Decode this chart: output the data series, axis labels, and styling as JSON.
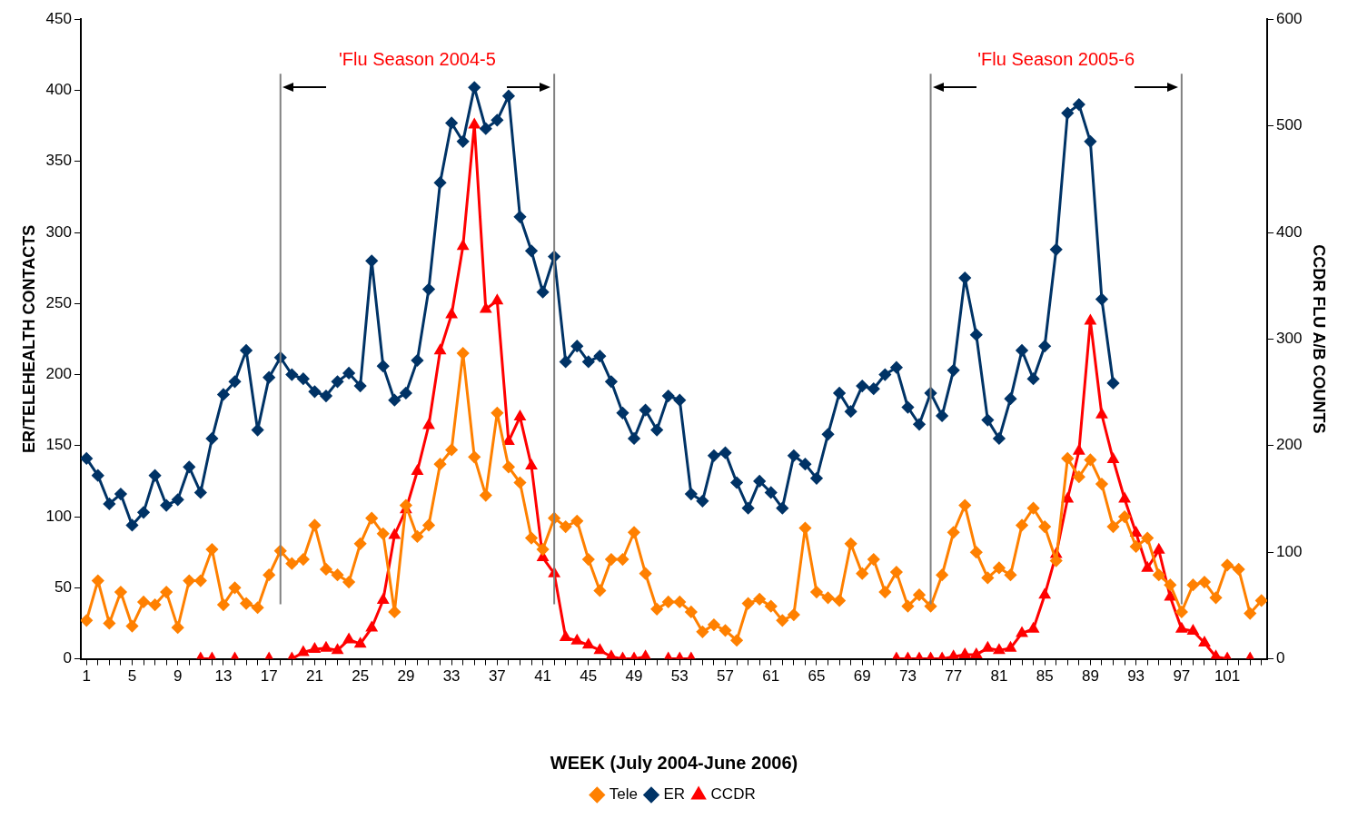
{
  "chart_data": {
    "type": "line",
    "xlabel": "WEEK (July 2004-June 2006)",
    "ylabel": "ER/TELEHEALTH CONTACTS",
    "y2label": "CCDR FLU A/B COUNTS",
    "x": [
      1,
      2,
      3,
      4,
      5,
      6,
      7,
      8,
      9,
      10,
      11,
      12,
      13,
      14,
      15,
      16,
      17,
      18,
      19,
      20,
      21,
      22,
      23,
      24,
      25,
      26,
      27,
      28,
      29,
      30,
      31,
      32,
      33,
      34,
      35,
      36,
      37,
      38,
      39,
      40,
      41,
      42,
      43,
      44,
      45,
      46,
      47,
      48,
      49,
      50,
      51,
      52,
      53,
      54,
      55,
      56,
      57,
      58,
      59,
      60,
      61,
      62,
      63,
      64,
      65,
      66,
      67,
      68,
      69,
      70,
      71,
      72,
      73,
      74,
      75,
      76,
      77,
      78,
      79,
      80,
      81,
      82,
      83,
      84,
      85,
      86,
      87,
      88,
      89,
      90,
      91,
      92,
      93,
      94,
      95,
      96,
      97,
      98,
      99,
      100,
      101,
      102,
      103,
      104
    ],
    "xlim": [
      0.5,
      104.5
    ],
    "xticks": [
      1,
      {
        "value": 2,
        "label": null
      },
      {
        "value": 3,
        "label": null
      },
      {
        "value": 4,
        "label": null
      },
      5,
      {
        "value": 6,
        "label": null
      },
      {
        "value": 7,
        "label": null
      },
      {
        "value": 8,
        "label": null
      },
      9,
      {
        "value": 10,
        "label": null
      },
      {
        "value": 11,
        "label": null
      },
      {
        "value": 12,
        "label": null
      },
      13,
      {
        "value": 14,
        "label": null
      },
      {
        "value": 15,
        "label": null
      },
      {
        "value": 16,
        "label": null
      },
      17,
      {
        "value": 18,
        "label": null
      },
      {
        "value": 19,
        "label": null
      },
      {
        "value": 20,
        "label": null
      },
      21,
      {
        "value": 22,
        "label": null
      },
      {
        "value": 23,
        "label": null
      },
      {
        "value": 24,
        "label": null
      },
      25,
      {
        "value": 26,
        "label": null
      },
      {
        "value": 27,
        "label": null
      },
      {
        "value": 28,
        "label": null
      },
      29,
      {
        "value": 30,
        "label": null
      },
      {
        "value": 31,
        "label": null
      },
      {
        "value": 32,
        "label": null
      },
      33,
      {
        "value": 34,
        "label": null
      },
      {
        "value": 35,
        "label": null
      },
      {
        "value": 36,
        "label": null
      },
      37,
      {
        "value": 38,
        "label": null
      },
      {
        "value": 39,
        "label": null
      },
      {
        "value": 40,
        "label": null
      },
      41,
      {
        "value": 42,
        "label": null
      },
      {
        "value": 43,
        "label": null
      },
      {
        "value": 44,
        "label": null
      },
      45,
      {
        "value": 46,
        "label": null
      },
      {
        "value": 47,
        "label": null
      },
      {
        "value": 48,
        "label": null
      },
      49,
      {
        "value": 50,
        "label": null
      },
      {
        "value": 51,
        "label": null
      },
      {
        "value": 52,
        "label": null
      },
      53,
      {
        "value": 54,
        "label": null
      },
      {
        "value": 55,
        "label": null
      },
      {
        "value": 56,
        "label": null
      },
      57,
      {
        "value": 58,
        "label": null
      },
      {
        "value": 59,
        "label": null
      },
      {
        "value": 60,
        "label": null
      },
      61,
      {
        "value": 62,
        "label": null
      },
      {
        "value": 63,
        "label": null
      },
      {
        "value": 64,
        "label": null
      },
      65,
      {
        "value": 66,
        "label": null
      },
      {
        "value": 67,
        "label": null
      },
      {
        "value": 68,
        "label": null
      },
      69,
      {
        "value": 70,
        "label": null
      },
      {
        "value": 71,
        "label": null
      },
      {
        "value": 72,
        "label": null
      },
      73,
      {
        "value": 74,
        "label": null
      },
      {
        "value": 75,
        "label": null
      },
      {
        "value": 76,
        "label": null
      },
      77,
      {
        "value": 78,
        "label": null
      },
      {
        "value": 79,
        "label": null
      },
      {
        "value": 80,
        "label": null
      },
      81,
      {
        "value": 82,
        "label": null
      },
      {
        "value": 83,
        "label": null
      },
      {
        "value": 84,
        "label": null
      },
      85,
      {
        "value": 86,
        "label": null
      },
      {
        "value": 87,
        "label": null
      },
      {
        "value": 88,
        "label": null
      },
      89,
      {
        "value": 90,
        "label": null
      },
      {
        "value": 91,
        "label": null
      },
      {
        "value": 92,
        "label": null
      },
      93,
      {
        "value": 94,
        "label": null
      },
      {
        "value": 95,
        "label": null
      },
      {
        "value": 96,
        "label": null
      },
      97,
      {
        "value": 98,
        "label": null
      },
      {
        "value": 99,
        "label": null
      },
      {
        "value": 100,
        "label": null
      },
      101,
      {
        "value": 102,
        "label": null
      },
      {
        "value": 103,
        "label": null
      },
      {
        "value": 104,
        "label": null
      }
    ],
    "ylim": [
      0,
      450
    ],
    "yticks": [
      0,
      50,
      100,
      150,
      200,
      250,
      300,
      350,
      400,
      450
    ],
    "y2lim": [
      0,
      600
    ],
    "y2ticks": [
      0,
      100,
      200,
      300,
      400,
      500,
      600
    ],
    "legend": "bottom",
    "series": [
      {
        "name": "Tele",
        "color": "#ff8000",
        "marker": "diamond",
        "values": [
          27,
          55,
          25,
          47,
          23,
          40,
          38,
          47,
          22,
          55,
          55,
          77,
          38,
          50,
          39,
          36,
          59,
          76,
          67,
          70,
          94,
          63,
          59,
          54,
          81,
          99,
          88,
          33,
          108,
          86,
          94,
          137,
          147,
          215,
          142,
          115,
          173,
          135,
          124,
          85,
          77,
          99,
          93,
          97,
          70,
          48,
          70,
          70,
          89,
          60,
          35,
          40,
          40,
          33,
          19,
          24,
          20,
          13,
          39,
          42,
          37,
          27,
          31,
          92,
          47,
          43,
          41,
          81,
          60,
          70,
          47,
          61,
          37,
          45,
          37,
          59,
          89,
          108,
          75,
          57,
          64,
          59,
          94,
          106,
          93,
          69,
          141,
          128,
          140,
          123,
          93,
          100,
          79,
          85,
          59,
          52,
          33,
          52,
          54,
          43,
          66,
          63,
          32,
          41
        ]
      },
      {
        "name": "ER",
        "color": "#003366",
        "marker": "diamond",
        "values": [
          141,
          129,
          109,
          116,
          94,
          103,
          129,
          108,
          112,
          135,
          117,
          155,
          186,
          195,
          217,
          161,
          198,
          212,
          200,
          197,
          188,
          185,
          195,
          201,
          192,
          280,
          206,
          182,
          187,
          210,
          260,
          335,
          377,
          364,
          402,
          373,
          379,
          396,
          311,
          287,
          258,
          283,
          209,
          220,
          209,
          213,
          195,
          173,
          155,
          175,
          161,
          185,
          182,
          116,
          111,
          143,
          145,
          124,
          106,
          125,
          117,
          106,
          143,
          137,
          127,
          158,
          187,
          174,
          192,
          190,
          200,
          205,
          177,
          165,
          187,
          171,
          203,
          268,
          228,
          168,
          155,
          183,
          217,
          197,
          220,
          288,
          384,
          390,
          364,
          253,
          194,
          null,
          null,
          null,
          null,
          null,
          null,
          null,
          null,
          null,
          null,
          null,
          null,
          null
        ]
      },
      {
        "name": "CCDR",
        "color": "#ff0000",
        "marker": "triangle",
        "axis": "y2",
        "values": [
          null,
          null,
          null,
          null,
          null,
          null,
          null,
          null,
          null,
          null,
          0,
          0,
          null,
          0,
          null,
          null,
          0,
          null,
          0,
          6,
          9,
          10,
          8,
          18,
          14,
          29,
          55,
          116,
          140,
          176,
          219,
          289,
          323,
          387,
          501,
          328,
          336,
          204,
          227,
          181,
          95,
          80,
          20,
          17,
          13,
          8,
          2,
          0,
          0,
          2,
          null,
          0,
          0,
          0,
          null,
          null,
          null,
          null,
          null,
          null,
          null,
          null,
          null,
          null,
          null,
          null,
          null,
          null,
          null,
          null,
          null,
          0,
          0,
          0,
          0,
          0,
          2,
          4,
          4,
          10,
          8,
          10,
          24,
          28,
          60,
          98,
          150,
          195,
          317,
          229,
          187,
          150,
          118,
          85,
          102,
          58,
          28,
          26,
          15,
          2,
          0,
          null,
          0,
          null
        ]
      }
    ],
    "ref_lines": [
      {
        "axis": "x",
        "value": 18,
        "color": "#808080"
      },
      {
        "axis": "x",
        "value": 42,
        "color": "#808080"
      },
      {
        "axis": "x",
        "value": 75,
        "color": "#808080"
      },
      {
        "axis": "x",
        "value": 97,
        "color": "#808080"
      }
    ],
    "annotations": [
      "'Flu Season 2004-5",
      "'Flu Season 2005-6"
    ]
  }
}
